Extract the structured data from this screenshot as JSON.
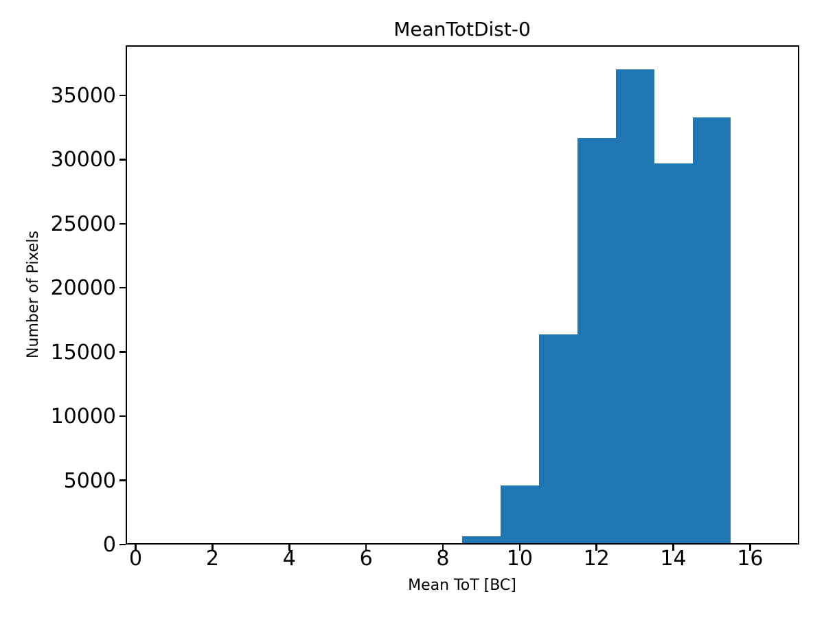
{
  "chart_data": {
    "type": "bar",
    "subtype": "histogram",
    "title": "MeanTotDist-0",
    "xlabel": "Mean ToT [BC]",
    "ylabel": "Number of Pixels",
    "bin_edges": [
      0.5,
      1.5,
      2.5,
      3.5,
      4.5,
      5.5,
      6.5,
      7.5,
      8.5,
      9.5,
      10.5,
      11.5,
      12.5,
      13.5,
      14.5,
      15.5,
      16.5
    ],
    "counts": [
      0,
      0,
      120,
      120,
      120,
      120,
      120,
      120,
      650,
      4600,
      16400,
      31700,
      37050,
      29700,
      33300,
      0
    ],
    "xlim": [
      -0.26,
      17.28
    ],
    "ylim": [
      0,
      38900
    ],
    "xticks": [
      0,
      2,
      4,
      6,
      8,
      10,
      12,
      14,
      16
    ],
    "yticks": [
      0,
      5000,
      10000,
      15000,
      20000,
      25000,
      30000,
      35000
    ],
    "bar_color": "#1f77b4",
    "axis_color": "#000000",
    "background_color": "#ffffff",
    "grid": false,
    "legend": null
  }
}
